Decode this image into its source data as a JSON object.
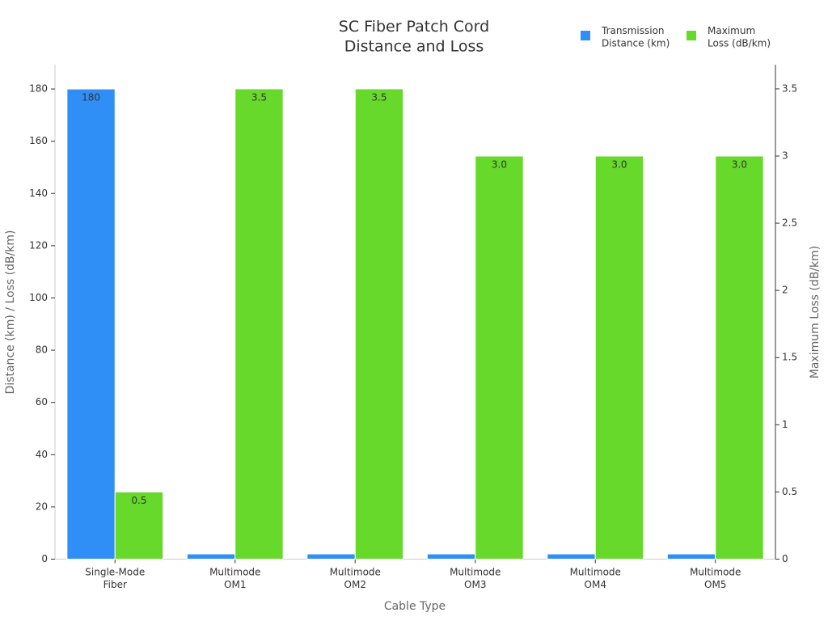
{
  "chart_data": {
    "type": "bar",
    "title": "SC Fiber Patch Cord\nDistance and Loss",
    "x_label": "Cable Type",
    "y_label": "Distance (km) / Loss (dB/km)",
    "y2_label": "Maximum Loss (dB/km)",
    "categories": [
      "Single-Mode\nFiber",
      "Multimode\nOM1",
      "Multimode\nOM2",
      "Multimode\nOM3",
      "Multimode\nOM4",
      "Multimode\nOM5"
    ],
    "series": [
      {
        "name": "Transmission\nDistance (km)",
        "color": "#2f8ff7",
        "values": [
          180,
          2,
          2,
          2,
          2,
          2
        ],
        "value_labels": [
          "180",
          null,
          null,
          null,
          null,
          null
        ]
      },
      {
        "name": "Maximum\nLoss (dB/km)",
        "color": "#66d92a",
        "axis": "y2",
        "values": [
          0.5,
          3.5,
          3.5,
          3.0,
          3.0,
          3.0
        ],
        "value_labels": [
          "0.5",
          "3.5",
          "3.5",
          "3.0",
          "3.0",
          "3.0"
        ]
      }
    ],
    "ylim": [
      0,
      189.3
    ],
    "yticks": [
      0,
      20,
      40,
      60,
      80,
      100,
      120,
      140,
      160,
      180
    ],
    "y2lim": [
      0,
      3.68
    ],
    "y2ticks": [
      0,
      0.5,
      1,
      1.5,
      2,
      2.5,
      3,
      3.5
    ],
    "legend": "top-right"
  }
}
